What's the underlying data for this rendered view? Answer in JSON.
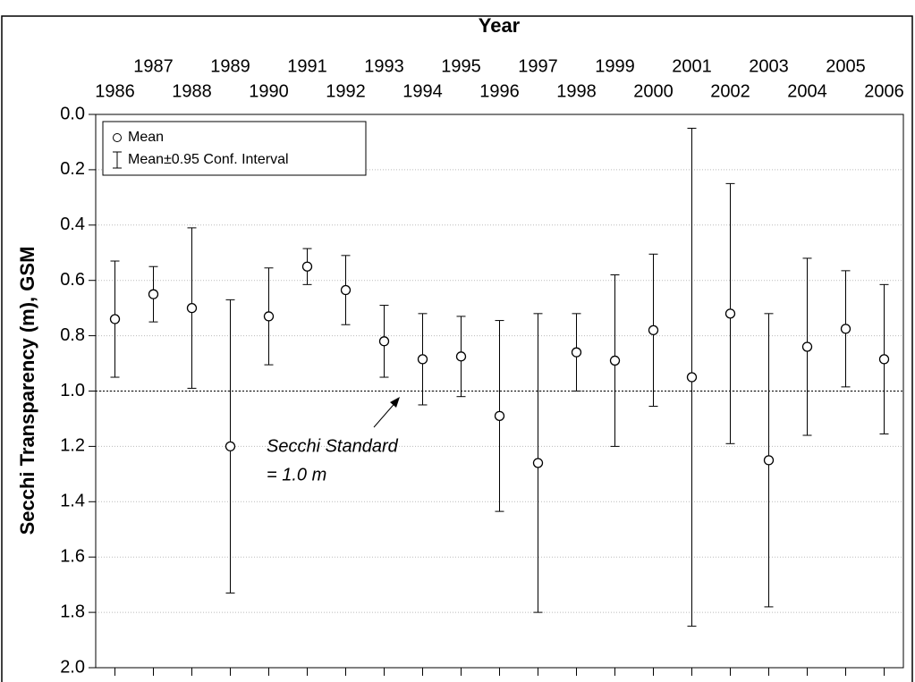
{
  "chart_data": {
    "type": "errorbar",
    "x_label": "Year",
    "y_label": "Secchi Transparency (m), GSM",
    "x": [
      1986,
      1987,
      1988,
      1989,
      1990,
      1991,
      1992,
      1993,
      1994,
      1995,
      1996,
      1997,
      1998,
      1999,
      2000,
      2001,
      2002,
      2003,
      2004,
      2005,
      2006
    ],
    "xlim": [
      1985.5,
      2006.5
    ],
    "xticks": [
      1986,
      1987,
      1988,
      1989,
      1990,
      1991,
      1992,
      1993,
      1994,
      1995,
      1996,
      1997,
      1998,
      1999,
      2000,
      2001,
      2002,
      2003,
      2004,
      2005,
      2006
    ],
    "ylim": [
      0,
      2
    ],
    "y_inverted": true,
    "yticks": [
      {
        "value": 0,
        "label": "0.0"
      },
      0.2,
      0.4,
      0.6,
      0.8,
      {
        "value": 1,
        "label": "1.0"
      },
      1.2,
      1.4,
      1.6,
      1.8,
      {
        "value": 2,
        "label": "2.0"
      }
    ],
    "grid": true,
    "series": [
      {
        "name": "Mean",
        "error_name": "Mean±0.95 Conf. Interval",
        "color": "#000000",
        "values": [
          0.74,
          0.65,
          0.7,
          1.2,
          0.73,
          0.55,
          0.635,
          0.82,
          0.885,
          0.875,
          1.09,
          1.26,
          0.86,
          0.89,
          0.78,
          0.95,
          0.72,
          1.25,
          0.84,
          0.775,
          0.885
        ],
        "errors": [
          0.21,
          0.1,
          0.29,
          0.53,
          0.175,
          0.065,
          0.125,
          0.13,
          0.165,
          0.145,
          0.345,
          0.54,
          0.14,
          0.31,
          0.275,
          0.9,
          0.47,
          0.53,
          0.32,
          0.21,
          0.27
        ]
      }
    ],
    "legend": "top-left",
    "reference_line": 1.0,
    "annotation": [
      "Secchi Standard",
      "= 1.0 m"
    ]
  }
}
